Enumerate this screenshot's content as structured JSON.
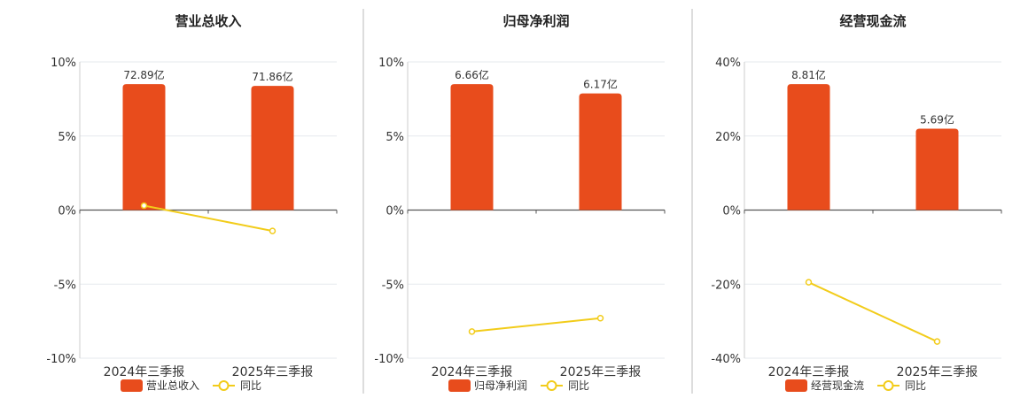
{
  "legend_yoy_label": "同比",
  "chart_data": [
    {
      "type": "bar",
      "title": "营业总收入",
      "categories": [
        "2024年三季报",
        "2025年三季报"
      ],
      "series": [
        {
          "name": "营业总收入",
          "type": "bar",
          "labels": [
            "72.89亿",
            "71.86亿"
          ],
          "values_yi": [
            72.89,
            71.86
          ]
        },
        {
          "name": "同比",
          "type": "line",
          "values": [
            0.3,
            -1.41
          ]
        }
      ],
      "yticks": [
        "10%",
        "5%",
        "0%",
        "-5%",
        "-10%"
      ],
      "ylim": [
        -10,
        10
      ],
      "grid": true,
      "legend_position": "bottom"
    },
    {
      "type": "bar",
      "title": "归母净利润",
      "categories": [
        "2024年三季报",
        "2025年三季报"
      ],
      "series": [
        {
          "name": "归母净利润",
          "type": "bar",
          "labels": [
            "6.66亿",
            "6.17亿"
          ],
          "values_yi": [
            6.66,
            6.17
          ]
        },
        {
          "name": "同比",
          "type": "line",
          "values": [
            -8.2,
            -7.3
          ]
        }
      ],
      "yticks": [
        "10%",
        "5%",
        "0%",
        "-5%",
        "-10%"
      ],
      "ylim": [
        -10,
        10
      ],
      "grid": true,
      "legend_position": "bottom"
    },
    {
      "type": "bar",
      "title": "经营现金流",
      "categories": [
        "2024年三季报",
        "2025年三季报"
      ],
      "series": [
        {
          "name": "经营现金流",
          "type": "bar",
          "labels": [
            "8.81亿",
            "5.69亿"
          ],
          "values_yi": [
            8.81,
            5.69
          ]
        },
        {
          "name": "同比",
          "type": "line",
          "values": [
            -19.5,
            -35.5
          ]
        }
      ],
      "yticks": [
        "40%",
        "20%",
        "0%",
        "-20%",
        "-40%"
      ],
      "ylim": [
        -40,
        40
      ],
      "grid": true,
      "legend_position": "bottom"
    }
  ],
  "colors": {
    "bar": "#e84c1c",
    "line": "#f2cc1a",
    "grid": "#e6e9ee",
    "axis": "#555555",
    "divider": "#bbbbbb"
  }
}
